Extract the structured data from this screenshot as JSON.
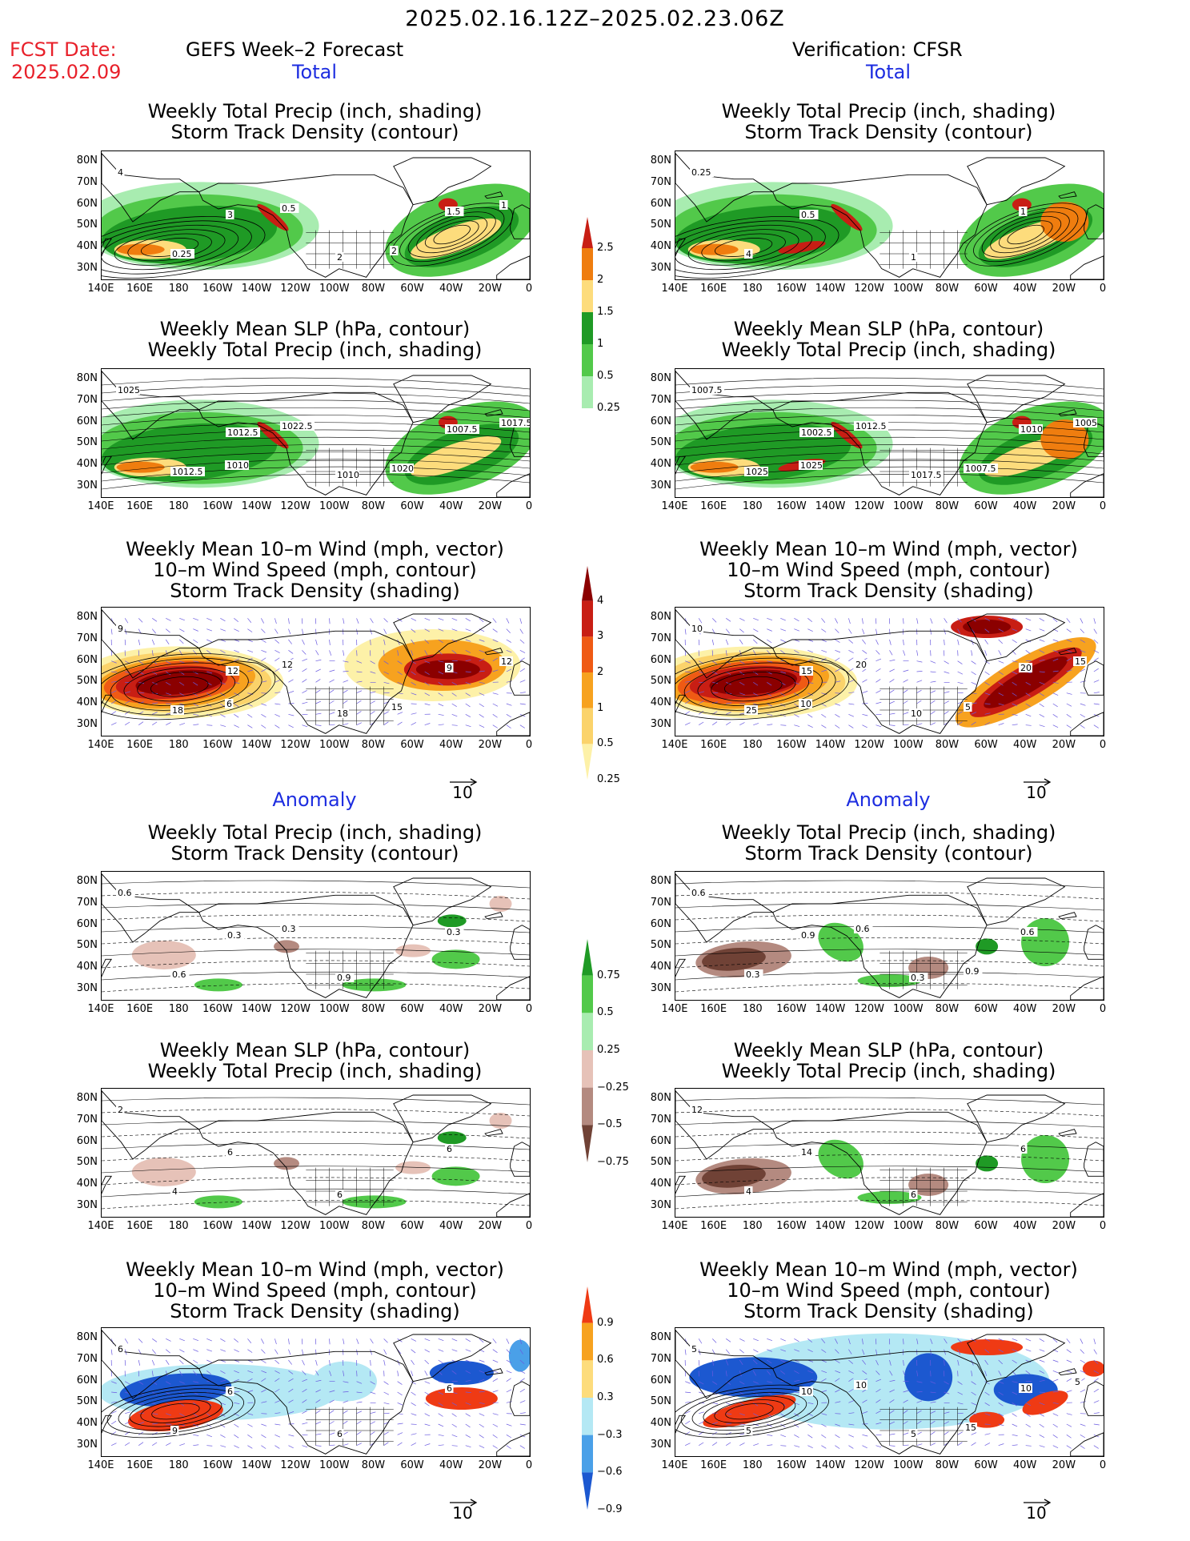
{
  "header": {
    "date_range": "2025.02.16.12Z–2025.02.23.06Z",
    "fcst_label": "FCST Date:",
    "fcst_date": "2025.02.09",
    "left_header": "GEFS Week–2 Forecast",
    "right_header": "Verification: CFSR"
  },
  "sections": {
    "total": "Total",
    "anomaly": "Anomaly"
  },
  "titles": {
    "precip_track": [
      "Weekly Total Precip (inch, shading)",
      "Storm Track Density (contour)"
    ],
    "slp_precip": [
      "Weekly Mean SLP (hPa, contour)",
      "Weekly Total Precip (inch, shading)"
    ],
    "wind_track": [
      "Weekly Mean 10–m Wind (mph, vector)",
      "10–m Wind Speed (mph, contour)",
      "Storm Track Density (shading)"
    ]
  },
  "axes": {
    "lat_labels": [
      "80N",
      "70N",
      "60N",
      "50N",
      "40N",
      "30N"
    ],
    "lon_labels": [
      "140E",
      "160E",
      "180",
      "160W",
      "140W",
      "120W",
      "100W",
      "80W",
      "60W",
      "40W",
      "20W",
      "0"
    ]
  },
  "vector_ref": "10",
  "colorbars": {
    "precip_total": {
      "ticks": [
        "2.5",
        "2",
        "1.5",
        "1",
        "0.5",
        "0.25"
      ],
      "colors": [
        "#c81e14",
        "#ef7d0f",
        "#fddc7c",
        "#1f9a25",
        "#52c94a",
        "#a8ecb0"
      ]
    },
    "track_total": {
      "ticks": [
        "4",
        "3",
        "2",
        "1",
        "0.5",
        "0.25"
      ],
      "colors": [
        "#8b0000",
        "#c81e14",
        "#ef5a14",
        "#f7a21f",
        "#fbd36b",
        "#fdf1a8"
      ]
    },
    "precip_anom": {
      "ticks": [
        "0.75",
        "0.5",
        "0.25",
        "−0.25",
        "−0.5",
        "−0.75"
      ],
      "colors": [
        "#1f9a25",
        "#52c94a",
        "#a8ecb0",
        "#e6c2b8",
        "#b48a80",
        "#704236"
      ]
    },
    "track_anom": {
      "ticks": [
        "0.9",
        "0.6",
        "0.3",
        "−0.3",
        "−0.6",
        "−0.9"
      ],
      "colors": [
        "#ef3a14",
        "#f7a21f",
        "#fddc7c",
        "#b4e8f4",
        "#4aa0e8",
        "#1c58d0"
      ]
    }
  },
  "panels": {
    "fc_t1": {
      "labels": [
        "4",
        "3",
        "2",
        "1.5",
        "0.25",
        "0.5",
        "2",
        "1"
      ]
    },
    "vf_t1": {
      "labels": [
        "0.25",
        "0.5",
        "1",
        "1",
        "4"
      ]
    },
    "fc_t2": {
      "labels": [
        "1025",
        "1012.5",
        "1010",
        "1007.5",
        "1012.5",
        "1022.5",
        "1020",
        "1017.5",
        "1010"
      ]
    },
    "vf_t2": {
      "labels": [
        "1007.5",
        "1002.5",
        "1017.5",
        "1010",
        "1025",
        "1012.5",
        "1007.5",
        "1005",
        "1025"
      ]
    },
    "fc_t3": {
      "labels": [
        "9",
        "12",
        "18",
        "9",
        "18",
        "12",
        "15",
        "12",
        "6"
      ]
    },
    "vf_t3": {
      "labels": [
        "10",
        "15",
        "10",
        "20",
        "25",
        "20",
        "5",
        "15",
        "10"
      ]
    },
    "fc_a1": {
      "labels": [
        "0.6",
        "0.3",
        "0.9",
        "0.3",
        "0.6",
        "0.3"
      ]
    },
    "vf_a1": {
      "labels": [
        "0.6",
        "0.9",
        "0.3",
        "0.6",
        "0.3",
        "0.6",
        "0.9"
      ]
    },
    "fc_a2": {
      "labels": [
        "2",
        "6",
        "6",
        "6",
        "4"
      ]
    },
    "vf_a2": {
      "labels": [
        "12",
        "14",
        "6",
        "6",
        "4"
      ]
    },
    "fc_a3": {
      "labels": [
        "6",
        "6",
        "6",
        "6",
        "9"
      ]
    },
    "vf_a3": {
      "labels": [
        "5",
        "10",
        "5",
        "10",
        "5",
        "10",
        "15",
        "5"
      ]
    }
  }
}
